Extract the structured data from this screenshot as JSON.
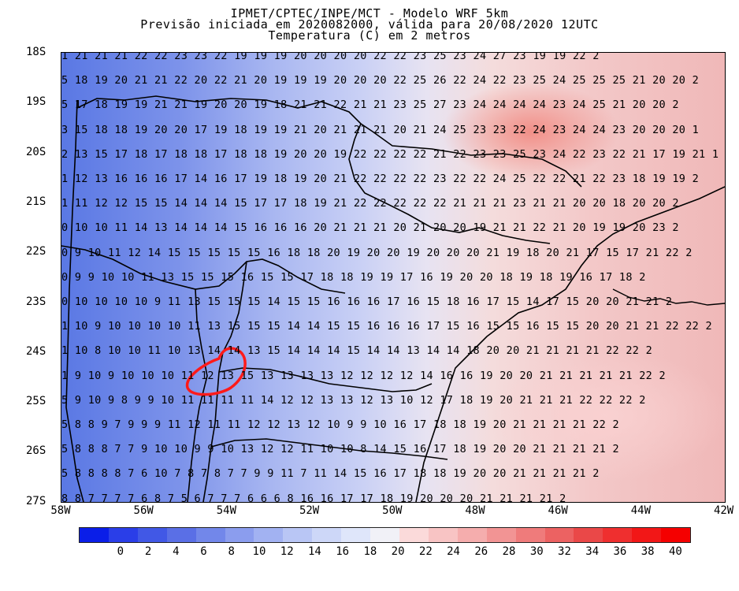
{
  "header": {
    "line1": "IPMET/CPTEC/INPE/MCT - Modelo WRF 5km",
    "line2": "Previsão iniciada em 2020082000, válida para 20/08/2020 12UTC",
    "line3": "Temperatura (C) em 2 metros"
  },
  "axes": {
    "y_labels": [
      "18S",
      "19S",
      "20S",
      "21S",
      "22S",
      "23S",
      "24S",
      "25S",
      "26S",
      "27S"
    ],
    "x_labels": [
      "58W",
      "56W",
      "54W",
      "52W",
      "50W",
      "48W",
      "46W",
      "44W",
      "42W"
    ]
  },
  "grid_rows": [
    "  1 21 21 21 22 22 23 23 22 19 19 19 20 20 20 20 22 22 23 25 23 24 27 23 19 19 22 2",
    "5 18 19 20 21 21 22 20 22 21 20 19 19 19 20 20 20 22 25 26 22 24 22 23 25 24 25 25 25 21 20 20 2",
    "5 17 18 19 19 21 21 19 20 20 19 18 21 21 22 21 21 23 25 27 23 24 24 24 24 23 24 25 21 20 20 2",
    "3 15 18 18 19 20 20 17 19 18 19 19 21 20 21 21 21 20 21 24 25 23 23 22 24 23 24 24 23 20 20 20 1",
    "2 13 15 17 18 17 18 18 17 18 18 19 20 20 19 22 22 22 22 21 22 23 23 25 23 24 22 23 22 21 17 19 21 1",
    "1 12 13 16 16 16 17 14 16 17 19 18 19 20 21 22 22 22 22 23 22 22 24 25 22 22 21 22 23 18 19 19 2",
    "1 11 12 12 15 15 14 14 14 15 17 17 18 19 21 22 22 22 22 22 21 21 21 23 21 21 20 20 18 20 20 2",
    "0 10 10 11 14 13 14 14 14 15 16 16 16 20 21 21 21 20 21 20 20 19 21 21 22 21 20 19 19 20 23 2",
    "0 9 10 11 12 14 15 15 15 15 15 16 18 18 20 19 20 20 19 20 20 20 21 19 18 20 21 17 15 17 21 22 2",
    "0 9 9 10 10 11 13 15 15 15 16 15 15 17 18 18 19 19 17 16 19 20 20 18 19 18 19 16 17 18 2",
    "0 10 10 10 10 9 11 13 15 15 15 14 15 15 16 16 16 17 16 15 18 16 17 15 14 17 15 20 20 21 21 2",
    "1 10 9 10 10 10 10 11 13 15 15 15 14 14 15 15 16 16 16 17 15 16 15 15 16 15 15 20 20 21 21 22 22 2",
    "1 10 8 10 10 11 10 13 14 14 13 15 14 14 14 15 14 14 13 14 14 18 20 20 21 21 21 21 22 22 2",
    "1 9 10 9 10 10 10 11 12 13 15 13 13 13 13 12 12 12 12 14 16 16 19 20 20 21 21 21 21 21 22 2",
    "5 9 10 9 8 9 9 10 11 11 11 11 14 12 12 13 13 12 13 10 12 17 18 19 20 21 21 21 22 22 22 2",
    "5 8 8 9 7 9 9 9 11 12 11 11 12 12 13 12 10 9 9 10 16 17 18 18 19 20 21 21 21 21 22 2",
    "5 8 8 8 7 7 9 10 10 9 9 10 13 12 12 11 10 10 8 14 15 16 17 18 19 20 20 21 21 21 21 2",
    "5 8 8 8 8 7 6 10 7 8 7 8 7 7 9 9 11 7 11 14 15 16 17 18 18 19 20 20 21 21 21 21 2",
    "  8 8 7 7 7 7 6 8 7 5 6 7 7 7 6 6 6 8 16 16 17 17 18 19 20 20 20 21 21 21 21 2"
  ],
  "colorbar": {
    "labels": [
      "0",
      "2",
      "4",
      "6",
      "8",
      "10",
      "12",
      "14",
      "16",
      "18",
      "20",
      "22",
      "24",
      "26",
      "28",
      "30",
      "32",
      "34",
      "36",
      "38",
      "40"
    ],
    "colors": [
      "#0a1ee8",
      "#2a3ee8",
      "#4158e6",
      "#5a6fe6",
      "#7287ea",
      "#8b9dee",
      "#a2b2f2",
      "#b9c6f5",
      "#cdd7f8",
      "#dfe6fa",
      "#f1f1f7",
      "#fbdada",
      "#f8c4c4",
      "#f5adad",
      "#f29494",
      "#ef7b7b",
      "#ec6262",
      "#ea4848",
      "#ef2f2f",
      "#f21717",
      "#f50000"
    ]
  }
}
